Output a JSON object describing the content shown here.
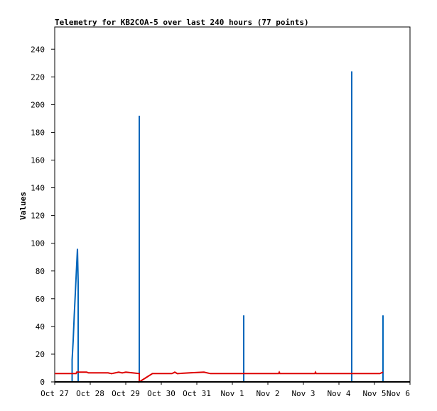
{
  "chart_data": {
    "type": "line",
    "title": "Telemetry for KB2COA-5 over last 240 hours (77 points)",
    "xlabel": "",
    "ylabel": "Values",
    "x_ticks": [
      "Oct 27",
      "Oct 28",
      "Oct 29",
      "Oct 30",
      "Oct 31",
      "Nov 1",
      "Nov 2",
      "Nov 3",
      "Nov 4",
      "Nov 5",
      "Nov 6"
    ],
    "xlim": [
      0,
      10
    ],
    "y_ticks": [
      0,
      20,
      40,
      60,
      80,
      100,
      120,
      140,
      160,
      180,
      200,
      220,
      240
    ],
    "ylim": [
      0,
      256
    ],
    "grid": false,
    "legend": "none",
    "series": [
      {
        "color": "#0066bb",
        "points": [
          [
            0.49,
            0
          ],
          [
            0.49,
            16
          ],
          [
            0.52,
            30
          ],
          [
            0.55,
            48
          ],
          [
            0.58,
            64
          ],
          [
            0.61,
            80
          ],
          [
            0.64,
            96
          ],
          [
            0.66,
            72
          ],
          [
            0.66,
            0
          ],
          [
            2.38,
            0
          ],
          [
            2.38,
            192
          ],
          [
            2.38,
            0
          ],
          [
            5.32,
            0
          ],
          [
            5.32,
            48
          ],
          [
            5.32,
            0
          ],
          [
            8.36,
            0
          ],
          [
            8.36,
            224
          ],
          [
            8.36,
            0
          ],
          [
            9.24,
            0
          ],
          [
            9.24,
            48
          ],
          [
            9.24,
            0
          ]
        ]
      },
      {
        "color": "#dd0000",
        "points": [
          [
            0.0,
            6
          ],
          [
            0.6,
            6
          ],
          [
            0.62,
            7
          ],
          [
            0.9,
            7
          ],
          [
            0.95,
            6.5
          ],
          [
            1.5,
            6.5
          ],
          [
            1.6,
            6
          ],
          [
            1.8,
            7
          ],
          [
            1.9,
            6.5
          ],
          [
            2.0,
            7
          ],
          [
            2.38,
            6
          ],
          [
            2.38,
            0
          ],
          [
            2.75,
            6
          ],
          [
            3.3,
            6
          ],
          [
            3.38,
            7
          ],
          [
            3.45,
            6
          ],
          [
            3.8,
            6.5
          ],
          [
            4.2,
            7
          ],
          [
            4.38,
            6
          ],
          [
            6.3,
            6
          ],
          [
            6.32,
            7
          ],
          [
            6.34,
            6
          ],
          [
            7.32,
            6
          ],
          [
            7.34,
            7
          ],
          [
            7.36,
            6
          ],
          [
            9.15,
            6
          ],
          [
            9.24,
            7
          ]
        ]
      }
    ]
  }
}
